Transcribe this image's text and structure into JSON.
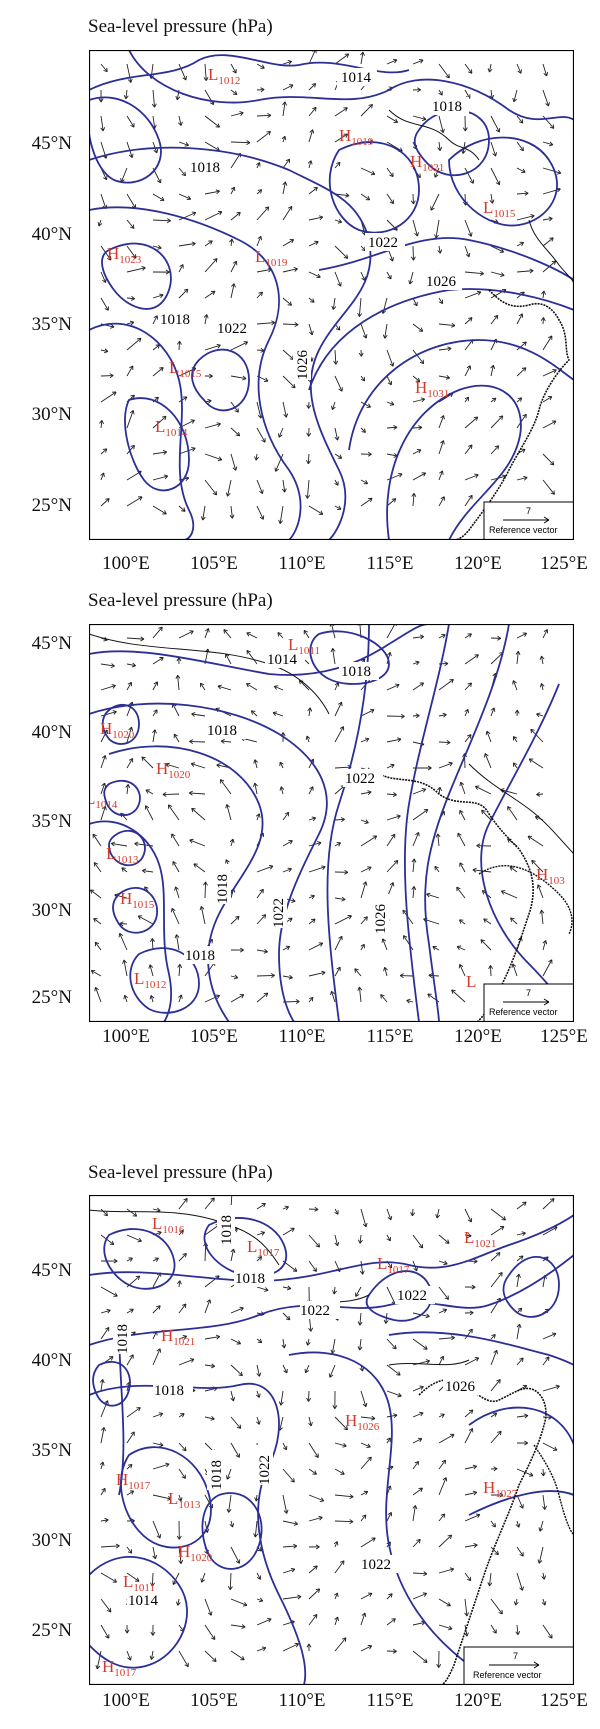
{
  "panels": [
    {
      "title": "Sea-level pressure (hPa)",
      "lat_labels": [
        "45°N",
        "40°N",
        "35°N",
        "30°N",
        "25°N"
      ],
      "lon_labels": [
        "100°E",
        "105°E",
        "110°E",
        "115°E",
        "120°E",
        "125°E"
      ],
      "isobar_labels": [
        "1014",
        "1018",
        "1018",
        "1018",
        "1022",
        "1022",
        "1026",
        "1026"
      ],
      "centers": [
        {
          "type": "L",
          "value": "1012"
        },
        {
          "type": "H",
          "value": "1019"
        },
        {
          "type": "H",
          "value": "1021"
        },
        {
          "type": "L",
          "value": "1015"
        },
        {
          "type": "H",
          "value": "1023"
        },
        {
          "type": "L",
          "value": "1019"
        },
        {
          "type": "L",
          "value": "1015"
        },
        {
          "type": "L",
          "value": "1014"
        },
        {
          "type": "H",
          "value": "1031"
        }
      ],
      "reference_vector": {
        "value": "7",
        "label": "Reference vector"
      }
    },
    {
      "title": "Sea-level pressure (hPa)",
      "lat_labels": [
        "45°N",
        "40°N",
        "35°N",
        "30°N",
        "25°N"
      ],
      "lon_labels": [
        "100°E",
        "105°E",
        "110°E",
        "115°E",
        "120°E",
        "125°E"
      ],
      "isobar_labels": [
        "1014",
        "1018",
        "1018",
        "1018",
        "1018",
        "1022",
        "1022",
        "1026"
      ],
      "centers": [
        {
          "type": "L",
          "value": "1011"
        },
        {
          "type": "H",
          "value": "1020"
        },
        {
          "type": "H",
          "value": "1020"
        },
        {
          "type": "L",
          "value": "1014"
        },
        {
          "type": "L",
          "value": "1013"
        },
        {
          "type": "H",
          "value": "1015"
        },
        {
          "type": "L",
          "value": "1012"
        },
        {
          "type": "H",
          "value": "103"
        },
        {
          "type": "L",
          "value": ""
        }
      ],
      "reference_vector": {
        "value": "7",
        "label": "Reference vector"
      }
    },
    {
      "title": "Sea-level pressure (hPa)",
      "lat_labels": [
        "45°N",
        "40°N",
        "35°N",
        "30°N",
        "25°N"
      ],
      "lon_labels": [
        "100°E",
        "105°E",
        "110°E",
        "115°E",
        "120°E",
        "125°E"
      ],
      "isobar_labels": [
        "1018",
        "1018",
        "1018",
        "1018",
        "1018",
        "1022",
        "1022",
        "1022",
        "1022",
        "1026",
        "1014"
      ],
      "centers": [
        {
          "type": "L",
          "value": "1016"
        },
        {
          "type": "L",
          "value": "1017"
        },
        {
          "type": "L",
          "value": "1017"
        },
        {
          "type": "L",
          "value": "1021"
        },
        {
          "type": "H",
          "value": "1021"
        },
        {
          "type": "H",
          "value": "1026"
        },
        {
          "type": "H",
          "value": "1017"
        },
        {
          "type": "L",
          "value": "1013"
        },
        {
          "type": "H",
          "value": "1020"
        },
        {
          "type": "L",
          "value": "1011"
        },
        {
          "type": "H",
          "value": "1017"
        },
        {
          "type": "H",
          "value": "1027"
        }
      ],
      "reference_vector": {
        "value": "7",
        "label": "Reference vector"
      }
    }
  ],
  "colors": {
    "isobar": "#2b2f96",
    "center_label": "#d43a2a",
    "coast": "#111111",
    "arrow": "#222222"
  }
}
